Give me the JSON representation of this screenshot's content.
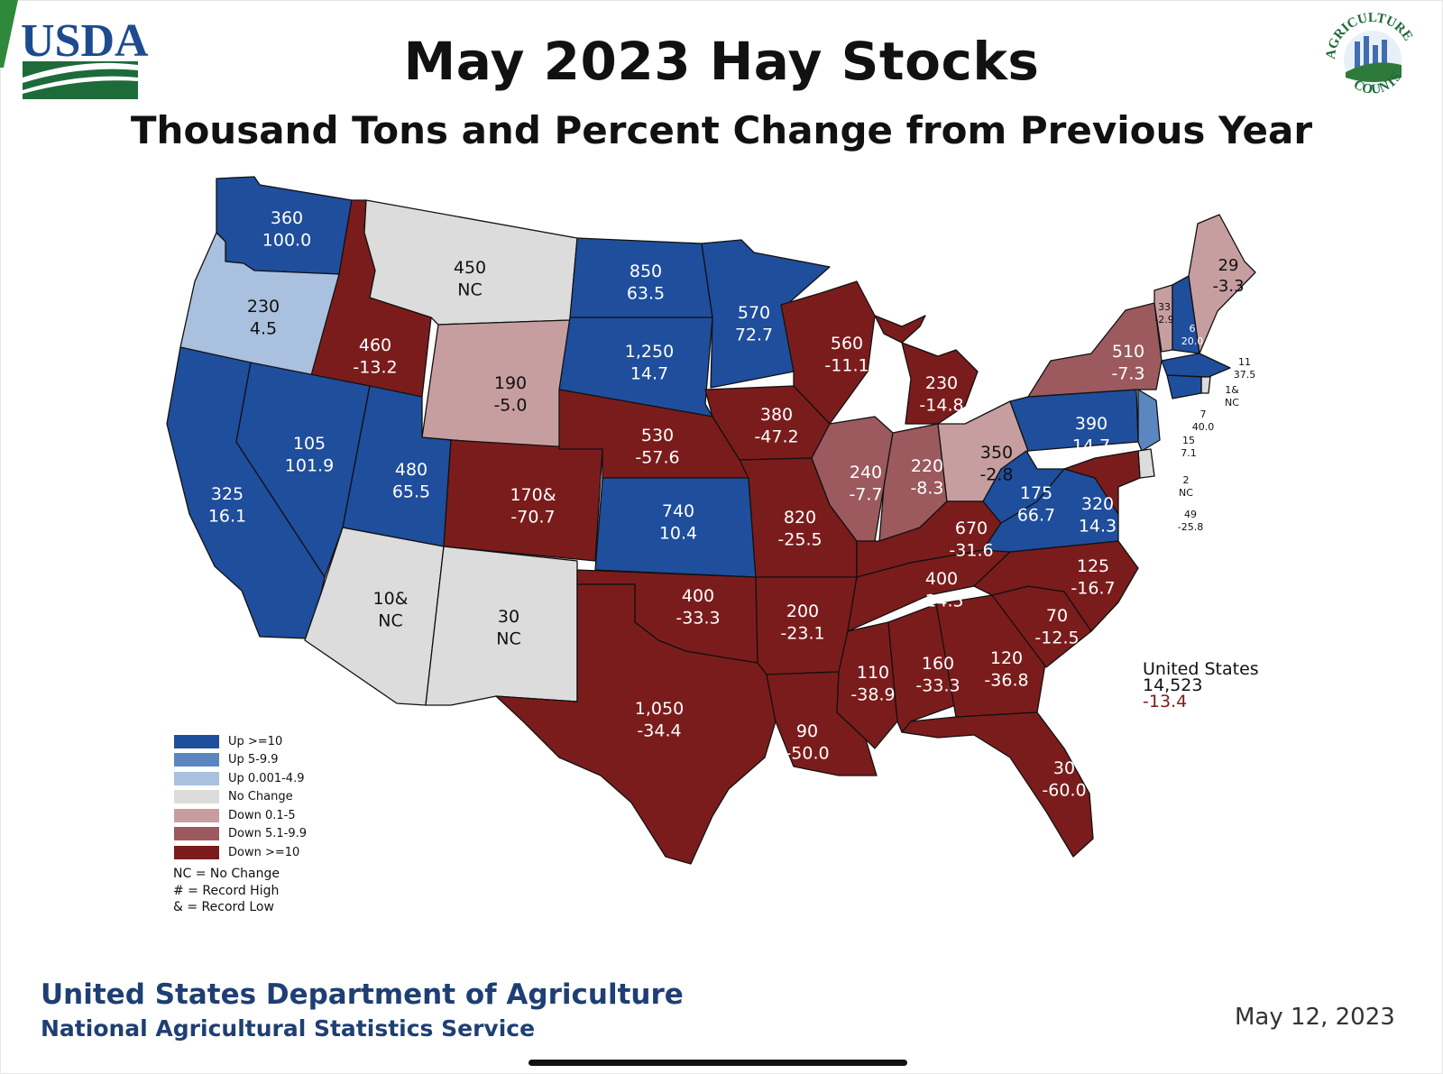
{
  "title": "May 2023 Hay Stocks",
  "subtitle": "Thousand Tons and Percent Change from Previous Year",
  "logos": {
    "usda": "USDA",
    "agriculture_counts_top": "AGRICULTURE",
    "agriculture_counts_bottom": "COUNTS"
  },
  "colors": {
    "up_ge_10": "#1f4e9c",
    "up_5_9_9": "#5b86c0",
    "up_0_4_9": "#a9c0de",
    "no_change": "#dcdcdc",
    "down_0_1_5": "#c79ea0",
    "down_5_1_9_9": "#9c5a5e",
    "down_ge_10": "#7b1c1c"
  },
  "legend": [
    {
      "label": "Up >=10",
      "color": "#1f4e9c"
    },
    {
      "label": "Up 5-9.9",
      "color": "#5b86c0"
    },
    {
      "label": "Up 0.001-4.9",
      "color": "#a9c0de"
    },
    {
      "label": "No Change",
      "color": "#dcdcdc"
    },
    {
      "label": "Down 0.1-5",
      "color": "#c79ea0"
    },
    {
      "label": "Down 5.1-9.9",
      "color": "#9c5a5e"
    },
    {
      "label": "Down >=10",
      "color": "#7b1c1c"
    }
  ],
  "notes": [
    "NC = No Change",
    "# = Record High",
    "& = Record Low"
  ],
  "us_total": {
    "label": "United States",
    "stocks": "14,523",
    "change": "-13.4"
  },
  "footer": {
    "dept": "United States Department of Agriculture",
    "agency": "National Agricultural Statistics Service",
    "date": "May 12, 2023"
  },
  "states": [
    {
      "id": "WA",
      "stocks": "360",
      "change": "100.0",
      "category": "up_ge_10"
    },
    {
      "id": "OR",
      "stocks": "230",
      "change": "4.5",
      "category": "up_0_4_9"
    },
    {
      "id": "CA",
      "stocks": "325",
      "change": "16.1",
      "category": "up_ge_10"
    },
    {
      "id": "ID",
      "stocks": "460",
      "change": "-13.2",
      "category": "down_ge_10"
    },
    {
      "id": "NV",
      "stocks": "105",
      "change": "101.9",
      "category": "up_ge_10"
    },
    {
      "id": "MT",
      "stocks": "450",
      "change": "NC",
      "category": "no_change"
    },
    {
      "id": "WY",
      "stocks": "190",
      "change": "-5.0",
      "category": "down_0_1_5"
    },
    {
      "id": "UT",
      "stocks": "480",
      "change": "65.5",
      "category": "up_ge_10"
    },
    {
      "id": "AZ",
      "stocks": "10&",
      "change": "NC",
      "category": "no_change"
    },
    {
      "id": "CO",
      "stocks": "170&",
      "change": "-70.7",
      "category": "down_ge_10"
    },
    {
      "id": "NM",
      "stocks": "30",
      "change": "NC",
      "category": "no_change"
    },
    {
      "id": "ND",
      "stocks": "850",
      "change": "63.5",
      "category": "up_ge_10"
    },
    {
      "id": "SD",
      "stocks": "1,250",
      "change": "14.7",
      "category": "up_ge_10"
    },
    {
      "id": "NE",
      "stocks": "530",
      "change": "-57.6",
      "category": "down_ge_10"
    },
    {
      "id": "KS",
      "stocks": "740",
      "change": "10.4",
      "category": "up_ge_10"
    },
    {
      "id": "OK",
      "stocks": "400",
      "change": "-33.3",
      "category": "down_ge_10"
    },
    {
      "id": "TX",
      "stocks": "1,050",
      "change": "-34.4",
      "category": "down_ge_10"
    },
    {
      "id": "MN",
      "stocks": "570",
      "change": "72.7",
      "category": "up_ge_10"
    },
    {
      "id": "IA",
      "stocks": "380",
      "change": "-47.2",
      "category": "down_ge_10"
    },
    {
      "id": "MO",
      "stocks": "820",
      "change": "-25.5",
      "category": "down_ge_10"
    },
    {
      "id": "AR",
      "stocks": "200",
      "change": "-23.1",
      "category": "down_ge_10"
    },
    {
      "id": "LA",
      "stocks": "90",
      "change": "-50.0",
      "category": "down_ge_10"
    },
    {
      "id": "WI",
      "stocks": "560",
      "change": "-11.1",
      "category": "down_ge_10"
    },
    {
      "id": "MI",
      "stocks": "230",
      "change": "-14.8",
      "category": "down_ge_10"
    },
    {
      "id": "IL",
      "stocks": "240",
      "change": "-7.7",
      "category": "down_5_1_9_9"
    },
    {
      "id": "IN",
      "stocks": "220",
      "change": "-8.3",
      "category": "down_5_1_9_9"
    },
    {
      "id": "OH",
      "stocks": "350",
      "change": "-2.8",
      "category": "down_0_1_5"
    },
    {
      "id": "KY",
      "stocks": "670",
      "change": "-31.6",
      "category": "down_ge_10"
    },
    {
      "id": "TN",
      "stocks": "400",
      "change": "-24.5",
      "category": "down_ge_10"
    },
    {
      "id": "MS",
      "stocks": "110",
      "change": "-38.9",
      "category": "down_ge_10"
    },
    {
      "id": "AL",
      "stocks": "160",
      "change": "-33.3",
      "category": "down_ge_10"
    },
    {
      "id": "GA",
      "stocks": "120",
      "change": "-36.8",
      "category": "down_ge_10"
    },
    {
      "id": "FL",
      "stocks": "30",
      "change": "-60.0",
      "category": "down_ge_10"
    },
    {
      "id": "SC",
      "stocks": "70",
      "change": "-12.5",
      "category": "down_ge_10"
    },
    {
      "id": "NC",
      "stocks": "125",
      "change": "-16.7",
      "category": "down_ge_10"
    },
    {
      "id": "VA",
      "stocks": "320",
      "change": "14.3",
      "category": "up_ge_10"
    },
    {
      "id": "WV",
      "stocks": "175",
      "change": "66.7",
      "category": "up_ge_10"
    },
    {
      "id": "PA",
      "stocks": "390",
      "change": "14.7",
      "category": "up_ge_10"
    },
    {
      "id": "NY",
      "stocks": "510",
      "change": "-7.3",
      "category": "down_5_1_9_9"
    },
    {
      "id": "VT",
      "stocks": "33",
      "change": "-2.9",
      "category": "down_0_1_5"
    },
    {
      "id": "NH",
      "stocks": "6",
      "change": "20.0",
      "category": "up_ge_10"
    },
    {
      "id": "ME",
      "stocks": "29",
      "change": "-3.3",
      "category": "down_0_1_5"
    },
    {
      "id": "MA",
      "stocks": "11",
      "change": "37.5",
      "category": "up_ge_10"
    },
    {
      "id": "RI",
      "stocks": "1&",
      "change": "NC",
      "category": "no_change"
    },
    {
      "id": "CT",
      "stocks": "7",
      "change": "40.0",
      "category": "up_ge_10"
    },
    {
      "id": "NJ",
      "stocks": "15",
      "change": "7.1",
      "category": "up_5_9_9"
    },
    {
      "id": "DE",
      "stocks": "2",
      "change": "NC",
      "category": "no_change"
    },
    {
      "id": "MD",
      "stocks": "49",
      "change": "-25.8",
      "category": "down_ge_10"
    }
  ]
}
